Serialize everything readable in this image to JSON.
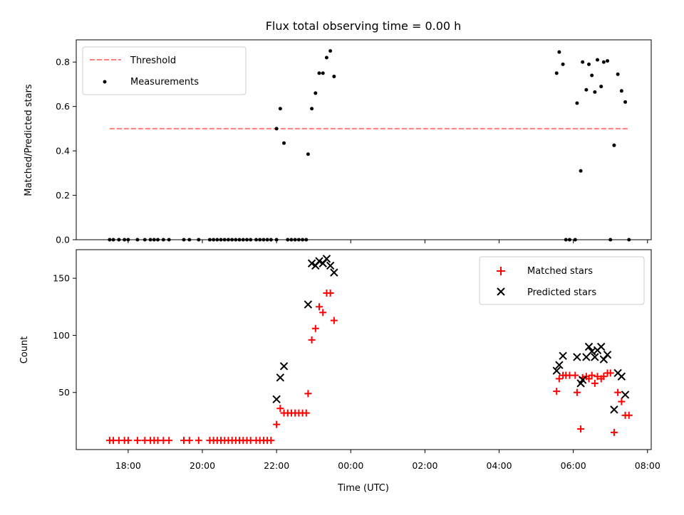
{
  "chart_data": {
    "type": "scatter",
    "title": "Flux total observing time = 0.00 h",
    "xlabel": "Time (UTC)",
    "x_ticks": [
      "18:00",
      "20:00",
      "22:00",
      "00:00",
      "02:00",
      "04:00",
      "06:00",
      "08:00"
    ],
    "xlim_hours": [
      16.6,
      32.1
    ],
    "panels": [
      {
        "ylabel": "Matched/Predicted stars",
        "ylim": [
          0,
          0.9
        ],
        "y_ticks": [
          0.0,
          0.2,
          0.4,
          0.6,
          0.8
        ],
        "y_tick_labels": [
          "0.0",
          "0.2",
          "0.4",
          "0.6",
          "0.8"
        ],
        "legend": {
          "placement": "top-left",
          "entries": [
            "Threshold",
            "Measurements"
          ]
        },
        "threshold": {
          "name": "Threshold",
          "value": 0.5,
          "x_range_hours": [
            17.5,
            31.5
          ],
          "color": "#ff7f7f",
          "style": "dashed"
        },
        "series": [
          {
            "name": "Measurements",
            "color": "#000000",
            "marker": "dot",
            "points": [
              [
                17.5,
                0
              ],
              [
                17.6,
                0
              ],
              [
                17.75,
                0
              ],
              [
                17.9,
                0
              ],
              [
                18.0,
                0
              ],
              [
                18.25,
                0
              ],
              [
                18.45,
                0
              ],
              [
                18.6,
                0
              ],
              [
                18.7,
                0
              ],
              [
                18.8,
                0
              ],
              [
                18.95,
                0
              ],
              [
                19.1,
                0
              ],
              [
                19.5,
                0
              ],
              [
                19.65,
                0
              ],
              [
                19.9,
                0
              ],
              [
                20.2,
                0
              ],
              [
                20.3,
                0
              ],
              [
                20.4,
                0
              ],
              [
                20.5,
                0
              ],
              [
                20.6,
                0
              ],
              [
                20.7,
                0
              ],
              [
                20.8,
                0
              ],
              [
                20.9,
                0
              ],
              [
                21.0,
                0
              ],
              [
                21.1,
                0
              ],
              [
                21.2,
                0
              ],
              [
                21.3,
                0
              ],
              [
                21.45,
                0
              ],
              [
                21.55,
                0
              ],
              [
                21.65,
                0
              ],
              [
                21.75,
                0
              ],
              [
                21.85,
                0
              ],
              [
                22.0,
                0
              ],
              [
                22.3,
                0
              ],
              [
                22.4,
                0
              ],
              [
                22.5,
                0
              ],
              [
                22.6,
                0
              ],
              [
                22.7,
                0
              ],
              [
                22.8,
                0
              ],
              [
                22.0,
                0.5
              ],
              [
                22.1,
                0.59
              ],
              [
                22.2,
                0.435
              ],
              [
                22.85,
                0.385
              ],
              [
                22.95,
                0.59
              ],
              [
                23.05,
                0.66
              ],
              [
                23.15,
                0.75
              ],
              [
                23.25,
                0.75
              ],
              [
                23.35,
                0.82
              ],
              [
                23.45,
                0.85
              ],
              [
                23.55,
                0.735
              ],
              [
                29.55,
                0.75
              ],
              [
                29.62,
                0.845
              ],
              [
                29.72,
                0.79
              ],
              [
                29.8,
                0
              ],
              [
                29.9,
                0
              ],
              [
                30.05,
                0
              ],
              [
                30.1,
                0.615
              ],
              [
                30.2,
                0.31
              ],
              [
                30.25,
                0.8
              ],
              [
                30.35,
                0.675
              ],
              [
                30.42,
                0.79
              ],
              [
                30.5,
                0.74
              ],
              [
                30.58,
                0.665
              ],
              [
                30.65,
                0.81
              ],
              [
                30.75,
                0.69
              ],
              [
                30.82,
                0.8
              ],
              [
                30.92,
                0.805
              ],
              [
                31.0,
                0
              ],
              [
                31.1,
                0.425
              ],
              [
                31.2,
                0.745
              ],
              [
                31.3,
                0.67
              ],
              [
                31.4,
                0.62
              ],
              [
                31.5,
                0
              ]
            ]
          }
        ]
      },
      {
        "ylabel": "Count",
        "ylim": [
          0,
          175
        ],
        "y_ticks": [
          50,
          100,
          150
        ],
        "y_tick_labels": [
          "50",
          "100",
          "150"
        ],
        "legend": {
          "placement": "top-right",
          "entries": [
            "Matched stars",
            "Predicted stars"
          ]
        },
        "series": [
          {
            "name": "Matched stars",
            "color": "#ff0000",
            "marker": "plus",
            "points": [
              [
                17.5,
                8
              ],
              [
                17.6,
                8
              ],
              [
                17.75,
                8
              ],
              [
                17.9,
                8
              ],
              [
                18.0,
                8
              ],
              [
                18.25,
                8
              ],
              [
                18.45,
                8
              ],
              [
                18.6,
                8
              ],
              [
                18.7,
                8
              ],
              [
                18.8,
                8
              ],
              [
                18.95,
                8
              ],
              [
                19.1,
                8
              ],
              [
                19.5,
                8
              ],
              [
                19.65,
                8
              ],
              [
                19.9,
                8
              ],
              [
                20.2,
                8
              ],
              [
                20.3,
                8
              ],
              [
                20.4,
                8
              ],
              [
                20.5,
                8
              ],
              [
                20.6,
                8
              ],
              [
                20.7,
                8
              ],
              [
                20.8,
                8
              ],
              [
                20.9,
                8
              ],
              [
                21.0,
                8
              ],
              [
                21.1,
                8
              ],
              [
                21.2,
                8
              ],
              [
                21.3,
                8
              ],
              [
                21.45,
                8
              ],
              [
                21.55,
                8
              ],
              [
                21.65,
                8
              ],
              [
                21.75,
                8
              ],
              [
                21.85,
                8
              ],
              [
                22.0,
                22
              ],
              [
                22.1,
                36
              ],
              [
                22.2,
                32
              ],
              [
                22.3,
                32
              ],
              [
                22.4,
                32
              ],
              [
                22.5,
                32
              ],
              [
                22.6,
                32
              ],
              [
                22.7,
                32
              ],
              [
                22.8,
                32
              ],
              [
                22.85,
                49
              ],
              [
                22.95,
                96
              ],
              [
                23.05,
                106
              ],
              [
                23.15,
                125
              ],
              [
                23.25,
                120
              ],
              [
                23.35,
                137
              ],
              [
                23.45,
                137
              ],
              [
                23.55,
                113
              ],
              [
                29.55,
                51
              ],
              [
                29.62,
                62
              ],
              [
                29.72,
                65
              ],
              [
                29.8,
                65
              ],
              [
                29.9,
                65
              ],
              [
                30.05,
                65
              ],
              [
                30.1,
                50
              ],
              [
                30.2,
                18
              ],
              [
                30.25,
                63
              ],
              [
                30.35,
                64
              ],
              [
                30.42,
                62
              ],
              [
                30.5,
                65
              ],
              [
                30.58,
                58
              ],
              [
                30.65,
                64
              ],
              [
                30.75,
                62
              ],
              [
                30.82,
                64
              ],
              [
                30.92,
                67
              ],
              [
                31.0,
                67
              ],
              [
                31.1,
                15
              ],
              [
                31.2,
                50
              ],
              [
                31.3,
                42
              ],
              [
                31.4,
                30
              ],
              [
                31.5,
                30
              ]
            ]
          },
          {
            "name": "Predicted stars",
            "color": "#000000",
            "marker": "x",
            "points": [
              [
                22.0,
                44
              ],
              [
                22.1,
                63
              ],
              [
                22.2,
                73
              ],
              [
                22.85,
                127
              ],
              [
                22.95,
                163
              ],
              [
                23.05,
                161
              ],
              [
                23.15,
                165
              ],
              [
                23.25,
                163
              ],
              [
                23.35,
                167
              ],
              [
                23.45,
                161
              ],
              [
                23.55,
                155
              ],
              [
                29.55,
                69
              ],
              [
                29.62,
                74
              ],
              [
                29.72,
                82
              ],
              [
                30.1,
                81
              ],
              [
                30.2,
                58
              ],
              [
                30.25,
                61
              ],
              [
                30.35,
                81
              ],
              [
                30.42,
                90
              ],
              [
                30.5,
                86
              ],
              [
                30.58,
                81
              ],
              [
                30.65,
                87
              ],
              [
                30.75,
                90
              ],
              [
                30.82,
                79
              ],
              [
                30.92,
                83
              ],
              [
                31.1,
                35
              ],
              [
                31.2,
                67
              ],
              [
                31.3,
                64
              ],
              [
                31.4,
                48
              ]
            ]
          }
        ]
      }
    ]
  }
}
